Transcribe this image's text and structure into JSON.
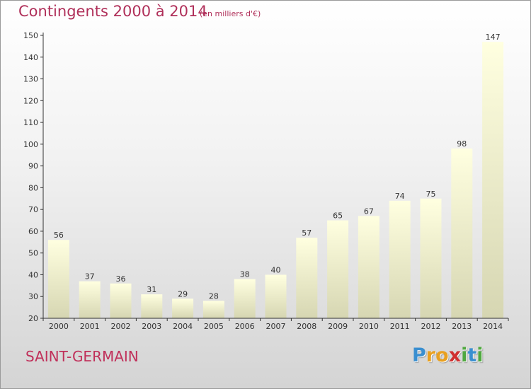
{
  "header": {
    "title": "Contingents 2000 à 2014",
    "subtitle": "(en milliers d'€)"
  },
  "commune": "SAINT-GERMAIN",
  "logo": {
    "letters": [
      {
        "char": "P",
        "color": "#3a8fd0"
      },
      {
        "char": "r",
        "color": "#e8a020"
      },
      {
        "char": "o",
        "color": "#e8a020"
      },
      {
        "char": "x",
        "color": "#d03030"
      },
      {
        "char": "i",
        "color": "#50a840"
      },
      {
        "char": "t",
        "color": "#3a8fd0"
      },
      {
        "char": "i",
        "color": "#50a840"
      }
    ]
  },
  "colors": {
    "title": "#b0305a",
    "bar_top": "#ffffe0",
    "bar_bottom": "#d6d6b2",
    "axis": "#333333"
  },
  "chart_data": {
    "type": "bar",
    "categories": [
      "2000",
      "2001",
      "2002",
      "2003",
      "2004",
      "2005",
      "2006",
      "2007",
      "2008",
      "2009",
      "2010",
      "2011",
      "2012",
      "2013",
      "2014"
    ],
    "values": [
      56,
      37,
      36,
      31,
      29,
      28,
      38,
      40,
      57,
      65,
      67,
      74,
      75,
      98,
      147
    ],
    "data_labels": [
      "56",
      "37",
      "36",
      "31",
      "29",
      "28",
      "38",
      "40",
      "57",
      "65",
      "67",
      "74",
      "75",
      "98",
      "147"
    ],
    "yticks": [
      20,
      30,
      40,
      50,
      60,
      70,
      80,
      90,
      100,
      110,
      120,
      130,
      140,
      150
    ],
    "ylim": [
      20,
      150
    ],
    "xlabel": "",
    "ylabel": "",
    "grid": false,
    "legend": "none"
  }
}
